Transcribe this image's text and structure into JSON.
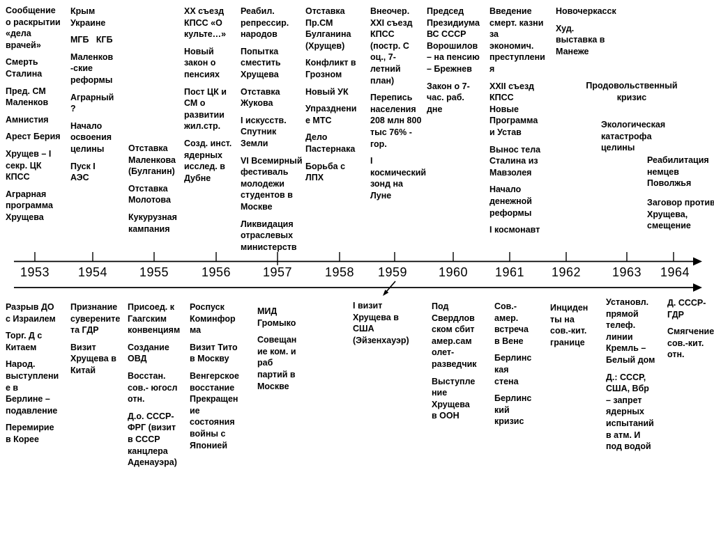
{
  "slide": {
    "years": [
      "1953",
      "1954",
      "1955",
      "1956",
      "1957",
      "1958",
      "1959",
      "1960",
      "1961",
      "1962",
      "1963",
      "1964"
    ],
    "top_columns": [
      {
        "year": "1953",
        "items": [
          "Сообщение\nо раскрытии\n«дела\nврачей»",
          "Смерть\nСталина",
          "Пред. СМ\nМаленков",
          "Амнистия",
          "Арест Берия",
          "Хрущев – I\nсекр. ЦК\nКПСС",
          "Аграрная\nпрограмма\nХрущева"
        ]
      },
      {
        "year": "1954",
        "items": [
          "Крым\nУкраине",
          "МГБ   КГБ",
          "Маленков\n-ские\nреформы",
          "Аграрный\n?",
          "Начало\nосвоения\nцелины",
          "Пуск I\nАЭС"
        ]
      },
      {
        "year": "1955",
        "items": [
          "Отставка\nМаленкова\n(Булганин)",
          "Отставка\nМолотова",
          "Кукурузная\nкампания"
        ]
      },
      {
        "year": "1956",
        "items": [
          "ХХ съезд\nКПСС «О\nкульте…»",
          "Новый\nзакон о\nпенсиях",
          "Пост ЦК и\nСМ о\nразвитии\nжил.стр.",
          "Созд. инст.\nядерных\nисслед. в\nДубне"
        ]
      },
      {
        "year": "1957",
        "items": [
          "Реабил.\nрепрессир.\nнародов",
          "Попытка\nсместить\nХрущева",
          "Отставка\nЖукова",
          "I искусств.\nСпутник\nЗемли",
          "VI Всемирный\nфестиваль\nмолодежи\nстудентов в\nМоскве",
          "Ликвидация\nотраслевых\nминистерств"
        ]
      },
      {
        "year": "1958",
        "items": [
          "Отставка\nПр.СМ\nБулганина\n(Хрущев)",
          "Конфликт в\nГрозном",
          "Новый УК",
          "Упразднени\nе МТС",
          "Дело\nПастернака",
          "Борьба с\nЛПХ"
        ]
      },
      {
        "year": "1959",
        "items": [
          "Внеочер.\nXXI съезд\nКПСС\n(постр. С\nоц., 7-\nлетний\nплан)",
          "Перепись\nнаселения\n208 млн 800\nтыс 76% -\nгор.",
          "I\nкосмический\nзонд на\nЛуне"
        ]
      },
      {
        "year": "1960",
        "items": [
          "Председ\nПрезидиума\nВС СССР\nВорошилов\n– на пенсию\n– Брежнев",
          "Закон о 7-\nчас. раб.\nдне"
        ]
      },
      {
        "year": "1961",
        "items": [
          "Введение\nсмерт. казни\nза\nэкономич.\nпреступлени\nя",
          "XXII съезд\nКПСС\nНовые\nПрограмма\nи Устав",
          "Вынос тела\nСталина из\nМавзолея",
          "Начало\nденежной\nреформы",
          "I космонавт"
        ]
      },
      {
        "year": "1962",
        "items": [
          "Новочеркасск",
          "Худ.\nвыставка в\nМанеже"
        ]
      }
    ],
    "floating_notes": [
      {
        "name": "food-crisis",
        "text": "Продовольственный\nкризис"
      },
      {
        "name": "ecological-disaster",
        "text": "Экологическая\nкатастрофа\nцелины"
      },
      {
        "name": "volga-germans-rehab",
        "text": "Реабилитация\nнемцев\nПоволжья"
      },
      {
        "name": "plot-against-khrushchev",
        "text": "Заговор против\nХрущева,\nсмещение"
      }
    ],
    "bottom_columns": [
      {
        "year": "1953",
        "items": [
          "Разрыв ДО\nс Израилем",
          "Торг. Д с\nКитаем",
          "Народ.\nвыступлени\nе в\nБерлине –\nподавление",
          "Перемирие\nв Корее"
        ]
      },
      {
        "year": "1954",
        "items": [
          "Признание\nсуверените\nта ГДР",
          "Визит\nХрущева в\nКитай"
        ]
      },
      {
        "year": "1955",
        "items": [
          "Присоед. к\nГаагским\nконвенциям",
          "Создание\nОВД",
          "Восстан.\nсов.- югосл\nотн.",
          "Д.о. СССР-\nФРГ (визит\nв СССР\nканцлера\nАденауэра)"
        ]
      },
      {
        "year": "1956",
        "items": [
          "Роспуск\nКоминфор\nма",
          "Визит Тито\nв Москву",
          "Венгерское\nвосстание\nПрекращен\nие\nсостояния\nвойны с\nЯпонией"
        ]
      },
      {
        "year": "1957",
        "items": [
          "МИД\nГромыко",
          "Совещан\nие ком. и\nраб\nпартий в\nМоскве"
        ]
      },
      {
        "year": "1959",
        "items": [
          "I визит\nХрущева в\nСША\n(Эйзенхауэр)"
        ]
      },
      {
        "year": "1960",
        "items": [
          "Под\nСвердлов\nском сбит\nамер.сам\nолет-\nразведчик",
          "Выступле\nние\nХрущева\nв ООН"
        ]
      },
      {
        "year": "1961",
        "items": [
          "Сов.-\nамер.\nвстреча\nв Вене",
          "Берлинс\nкая\nстена",
          "Берлинс\nкий\nкризис"
        ]
      },
      {
        "year": "1962",
        "items": [
          "Инциден\nты на\nсов.-кит.\nгранице"
        ]
      },
      {
        "year": "1963",
        "items": [
          "Установл.\nпрямой\nтелеф.\nлинии\nКремль –\nБелый дом",
          "Д.: СССР,\nСША, Вбр\n– запрет\nядерных\nиспытаний\nв атм. И\nпод водой"
        ]
      },
      {
        "year": "1964",
        "items": [
          "Д. СССР-\nГДР",
          "Смягчение\nсов.-кит.\nотн."
        ]
      }
    ]
  }
}
